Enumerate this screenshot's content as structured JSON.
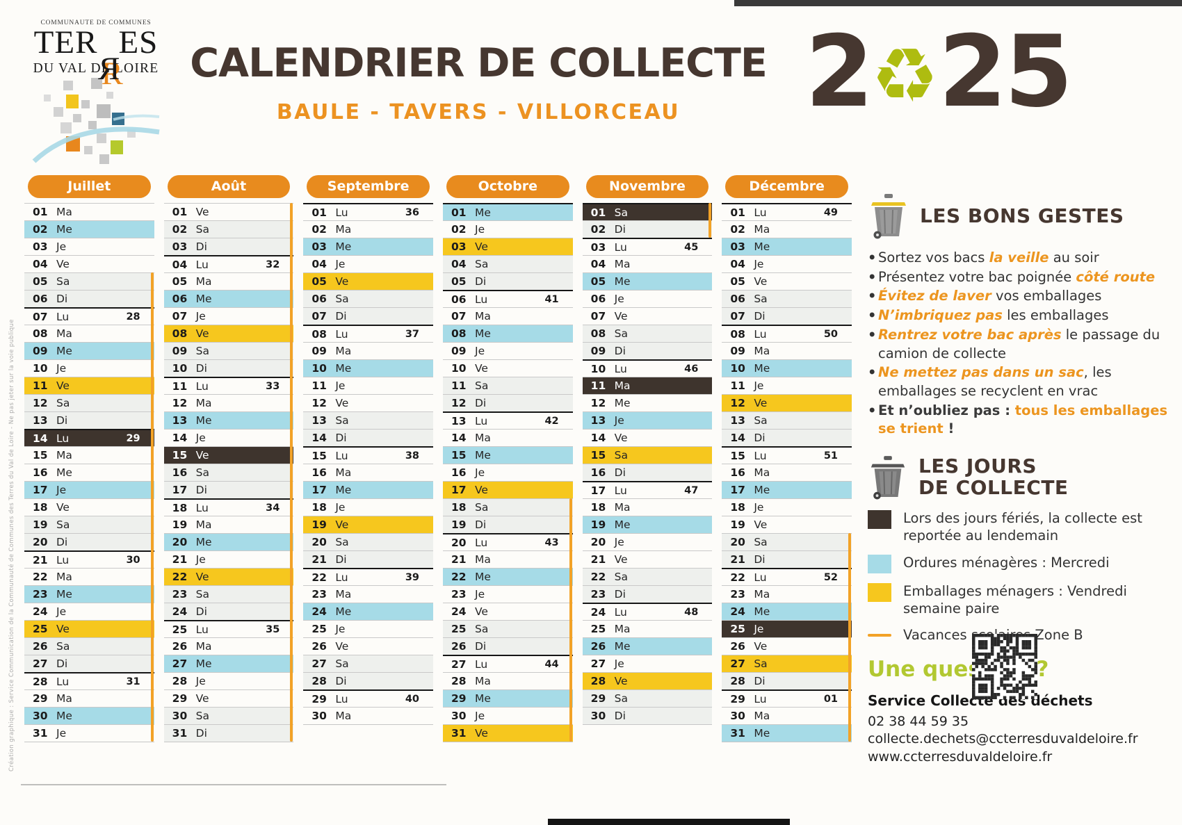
{
  "header": {
    "org_top": "COMMUNAUTE DE COMMUNES",
    "org_name": "TERRES",
    "org_sub": "DU VAL DE LOIRE",
    "title": "CALENDRIER DE COLLECTE",
    "subtitle": "BAULE - TAVERS - VILLORCEAU",
    "year": "2025"
  },
  "icons": {
    "recycle": "♻",
    "bullet": "•"
  },
  "colors": {
    "accent_orange": "#e88b1e",
    "ordures_blue": "#a6dbe7",
    "emballages_yellow": "#f6c71e",
    "ferie_dark": "#3e342d",
    "vacances_line": "#f2a227",
    "title_brown": "#463730",
    "question_green": "#b2c832"
  },
  "day_types": {
    "n": "normal",
    "b": "ordures-menageres",
    "y": "emballages",
    "f": "ferie",
    "w": "weekend"
  },
  "months": [
    {
      "name": "Juillet",
      "vac": [
        5,
        31
      ],
      "days": [
        [
          "01",
          "Ma",
          "n"
        ],
        [
          "02",
          "Me",
          "b"
        ],
        [
          "03",
          "Je",
          "n"
        ],
        [
          "04",
          "Ve",
          "n"
        ],
        [
          "05",
          "Sa",
          "w"
        ],
        [
          "06",
          "Di",
          "w"
        ],
        [
          "07",
          "Lu",
          "n",
          "28"
        ],
        [
          "08",
          "Ma",
          "n"
        ],
        [
          "09",
          "Me",
          "b"
        ],
        [
          "10",
          "Je",
          "n"
        ],
        [
          "11",
          "Ve",
          "y"
        ],
        [
          "12",
          "Sa",
          "w"
        ],
        [
          "13",
          "Di",
          "w"
        ],
        [
          "14",
          "Lu",
          "f",
          "29"
        ],
        [
          "15",
          "Ma",
          "n"
        ],
        [
          "16",
          "Me",
          "n"
        ],
        [
          "17",
          "Je",
          "b"
        ],
        [
          "18",
          "Ve",
          "n"
        ],
        [
          "19",
          "Sa",
          "w"
        ],
        [
          "20",
          "Di",
          "w"
        ],
        [
          "21",
          "Lu",
          "n",
          "30"
        ],
        [
          "22",
          "Ma",
          "n"
        ],
        [
          "23",
          "Me",
          "b"
        ],
        [
          "24",
          "Je",
          "n"
        ],
        [
          "25",
          "Ve",
          "y"
        ],
        [
          "26",
          "Sa",
          "w"
        ],
        [
          "27",
          "Di",
          "w"
        ],
        [
          "28",
          "Lu",
          "n",
          "31"
        ],
        [
          "29",
          "Ma",
          "n"
        ],
        [
          "30",
          "Me",
          "b"
        ],
        [
          "31",
          "Je",
          "n"
        ]
      ]
    },
    {
      "name": "Août",
      "vac": [
        1,
        31
      ],
      "days": [
        [
          "01",
          "Ve",
          "n"
        ],
        [
          "02",
          "Sa",
          "w"
        ],
        [
          "03",
          "Di",
          "w"
        ],
        [
          "04",
          "Lu",
          "n",
          "32"
        ],
        [
          "05",
          "Ma",
          "n"
        ],
        [
          "06",
          "Me",
          "b"
        ],
        [
          "07",
          "Je",
          "n"
        ],
        [
          "08",
          "Ve",
          "y"
        ],
        [
          "09",
          "Sa",
          "w"
        ],
        [
          "10",
          "Di",
          "w"
        ],
        [
          "11",
          "Lu",
          "n",
          "33"
        ],
        [
          "12",
          "Ma",
          "n"
        ],
        [
          "13",
          "Me",
          "b"
        ],
        [
          "14",
          "Je",
          "n"
        ],
        [
          "15",
          "Ve",
          "f"
        ],
        [
          "16",
          "Sa",
          "w"
        ],
        [
          "17",
          "Di",
          "w"
        ],
        [
          "18",
          "Lu",
          "n",
          "34"
        ],
        [
          "19",
          "Ma",
          "n"
        ],
        [
          "20",
          "Me",
          "b"
        ],
        [
          "21",
          "Je",
          "n"
        ],
        [
          "22",
          "Ve",
          "y"
        ],
        [
          "23",
          "Sa",
          "w"
        ],
        [
          "24",
          "Di",
          "w"
        ],
        [
          "25",
          "Lu",
          "n",
          "35"
        ],
        [
          "26",
          "Ma",
          "n"
        ],
        [
          "27",
          "Me",
          "b"
        ],
        [
          "28",
          "Je",
          "n"
        ],
        [
          "29",
          "Ve",
          "n"
        ],
        [
          "30",
          "Sa",
          "w"
        ],
        [
          "31",
          "Di",
          "w"
        ]
      ]
    },
    {
      "name": "Septembre",
      "vac": null,
      "days": [
        [
          "01",
          "Lu",
          "n",
          "36"
        ],
        [
          "02",
          "Ma",
          "n"
        ],
        [
          "03",
          "Me",
          "b"
        ],
        [
          "04",
          "Je",
          "n"
        ],
        [
          "05",
          "Ve",
          "y"
        ],
        [
          "06",
          "Sa",
          "w"
        ],
        [
          "07",
          "Di",
          "w"
        ],
        [
          "08",
          "Lu",
          "n",
          "37"
        ],
        [
          "09",
          "Ma",
          "n"
        ],
        [
          "10",
          "Me",
          "b"
        ],
        [
          "11",
          "Je",
          "n"
        ],
        [
          "12",
          "Ve",
          "n"
        ],
        [
          "13",
          "Sa",
          "w"
        ],
        [
          "14",
          "Di",
          "w"
        ],
        [
          "15",
          "Lu",
          "n",
          "38"
        ],
        [
          "16",
          "Ma",
          "n"
        ],
        [
          "17",
          "Me",
          "b"
        ],
        [
          "18",
          "Je",
          "n"
        ],
        [
          "19",
          "Ve",
          "y"
        ],
        [
          "20",
          "Sa",
          "w"
        ],
        [
          "21",
          "Di",
          "w"
        ],
        [
          "22",
          "Lu",
          "n",
          "39"
        ],
        [
          "23",
          "Ma",
          "n"
        ],
        [
          "24",
          "Me",
          "b"
        ],
        [
          "25",
          "Je",
          "n"
        ],
        [
          "26",
          "Ve",
          "n"
        ],
        [
          "27",
          "Sa",
          "w"
        ],
        [
          "28",
          "Di",
          "w"
        ],
        [
          "29",
          "Lu",
          "n",
          "40"
        ],
        [
          "30",
          "Ma",
          "n"
        ]
      ]
    },
    {
      "name": "Octobre",
      "vac": [
        18,
        31
      ],
      "sep_first": true,
      "days": [
        [
          "01",
          "Me",
          "b"
        ],
        [
          "02",
          "Je",
          "n"
        ],
        [
          "03",
          "Ve",
          "y"
        ],
        [
          "04",
          "Sa",
          "w"
        ],
        [
          "05",
          "Di",
          "w"
        ],
        [
          "06",
          "Lu",
          "n",
          "41"
        ],
        [
          "07",
          "Ma",
          "n"
        ],
        [
          "08",
          "Me",
          "b"
        ],
        [
          "09",
          "Je",
          "n"
        ],
        [
          "10",
          "Ve",
          "n"
        ],
        [
          "11",
          "Sa",
          "w"
        ],
        [
          "12",
          "Di",
          "w"
        ],
        [
          "13",
          "Lu",
          "n",
          "42"
        ],
        [
          "14",
          "Ma",
          "n"
        ],
        [
          "15",
          "Me",
          "b"
        ],
        [
          "16",
          "Je",
          "n"
        ],
        [
          "17",
          "Ve",
          "y"
        ],
        [
          "18",
          "Sa",
          "w"
        ],
        [
          "19",
          "Di",
          "w"
        ],
        [
          "20",
          "Lu",
          "n",
          "43"
        ],
        [
          "21",
          "Ma",
          "n"
        ],
        [
          "22",
          "Me",
          "b"
        ],
        [
          "23",
          "Je",
          "n"
        ],
        [
          "24",
          "Ve",
          "n"
        ],
        [
          "25",
          "Sa",
          "w"
        ],
        [
          "26",
          "Di",
          "w"
        ],
        [
          "27",
          "Lu",
          "n",
          "44"
        ],
        [
          "28",
          "Ma",
          "n"
        ],
        [
          "29",
          "Me",
          "b"
        ],
        [
          "30",
          "Je",
          "n"
        ],
        [
          "31",
          "Ve",
          "y"
        ]
      ]
    },
    {
      "name": "Novembre",
      "vac": [
        1,
        2
      ],
      "sep_first": true,
      "days": [
        [
          "01",
          "Sa",
          "f"
        ],
        [
          "02",
          "Di",
          "w"
        ],
        [
          "03",
          "Lu",
          "n",
          "45"
        ],
        [
          "04",
          "Ma",
          "n"
        ],
        [
          "05",
          "Me",
          "b"
        ],
        [
          "06",
          "Je",
          "n"
        ],
        [
          "07",
          "Ve",
          "n"
        ],
        [
          "08",
          "Sa",
          "w"
        ],
        [
          "09",
          "Di",
          "w"
        ],
        [
          "10",
          "Lu",
          "n",
          "46"
        ],
        [
          "11",
          "Ma",
          "f"
        ],
        [
          "12",
          "Me",
          "n"
        ],
        [
          "13",
          "Je",
          "b"
        ],
        [
          "14",
          "Ve",
          "n"
        ],
        [
          "15",
          "Sa",
          "y"
        ],
        [
          "16",
          "Di",
          "w"
        ],
        [
          "17",
          "Lu",
          "n",
          "47"
        ],
        [
          "18",
          "Ma",
          "n"
        ],
        [
          "19",
          "Me",
          "b"
        ],
        [
          "20",
          "Je",
          "n"
        ],
        [
          "21",
          "Ve",
          "n"
        ],
        [
          "22",
          "Sa",
          "w"
        ],
        [
          "23",
          "Di",
          "w"
        ],
        [
          "24",
          "Lu",
          "n",
          "48"
        ],
        [
          "25",
          "Ma",
          "n"
        ],
        [
          "26",
          "Me",
          "b"
        ],
        [
          "27",
          "Je",
          "n"
        ],
        [
          "28",
          "Ve",
          "y"
        ],
        [
          "29",
          "Sa",
          "w"
        ],
        [
          "30",
          "Di",
          "w"
        ]
      ]
    },
    {
      "name": "Décembre",
      "vac": [
        20,
        31
      ],
      "days": [
        [
          "01",
          "Lu",
          "n",
          "49"
        ],
        [
          "02",
          "Ma",
          "n"
        ],
        [
          "03",
          "Me",
          "b"
        ],
        [
          "04",
          "Je",
          "n"
        ],
        [
          "05",
          "Ve",
          "n"
        ],
        [
          "06",
          "Sa",
          "w"
        ],
        [
          "07",
          "Di",
          "w"
        ],
        [
          "08",
          "Lu",
          "n",
          "50"
        ],
        [
          "09",
          "Ma",
          "n"
        ],
        [
          "10",
          "Me",
          "b"
        ],
        [
          "11",
          "Je",
          "n"
        ],
        [
          "12",
          "Ve",
          "y"
        ],
        [
          "13",
          "Sa",
          "w"
        ],
        [
          "14",
          "Di",
          "w"
        ],
        [
          "15",
          "Lu",
          "n",
          "51"
        ],
        [
          "16",
          "Ma",
          "n"
        ],
        [
          "17",
          "Me",
          "b"
        ],
        [
          "18",
          "Je",
          "n"
        ],
        [
          "19",
          "Ve",
          "n"
        ],
        [
          "20",
          "Sa",
          "w"
        ],
        [
          "21",
          "Di",
          "w"
        ],
        [
          "22",
          "Lu",
          "n",
          "52"
        ],
        [
          "23",
          "Ma",
          "n"
        ],
        [
          "24",
          "Me",
          "b"
        ],
        [
          "25",
          "Je",
          "f"
        ],
        [
          "26",
          "Ve",
          "n"
        ],
        [
          "27",
          "Sa",
          "y"
        ],
        [
          "28",
          "Di",
          "w"
        ],
        [
          "29",
          "Lu",
          "n",
          "01"
        ],
        [
          "30",
          "Ma",
          "n"
        ],
        [
          "31",
          "Me",
          "b"
        ]
      ]
    }
  ],
  "tips": {
    "title": "LES BONS GESTES",
    "items": [
      [
        {
          "t": "Sortez vos bacs ",
          "s": "n"
        },
        {
          "t": "la veille",
          "s": "em"
        },
        {
          "t": " au soir",
          "s": "n"
        }
      ],
      [
        {
          "t": "Présentez votre bac poignée ",
          "s": "n"
        },
        {
          "t": "côté route",
          "s": "em"
        }
      ],
      [
        {
          "t": "Évitez de laver",
          "s": "em"
        },
        {
          "t": " vos emballages",
          "s": "n"
        }
      ],
      [
        {
          "t": "N’imbriquez pas",
          "s": "em"
        },
        {
          "t": " les emballages",
          "s": "n"
        }
      ],
      [
        {
          "t": "Rentrez votre bac après",
          "s": "em"
        },
        {
          "t": " le passage du camion de collecte",
          "s": "n"
        }
      ],
      [
        {
          "t": "Ne mettez pas dans un sac",
          "s": "em"
        },
        {
          "t": ", les emballages se recyclent en vrac",
          "s": "n"
        }
      ],
      [
        {
          "t": "Et n’oubliez pas : ",
          "s": "b"
        },
        {
          "t": "tous les emballages se trient",
          "s": "em2"
        },
        {
          "t": " !",
          "s": "b"
        }
      ]
    ]
  },
  "jours": {
    "title_line1": "LES JOURS",
    "title_line2": "DE COLLECTE",
    "items": [
      {
        "swatch": "dark",
        "text": "Lors des jours fériés, la collecte est reportée au lendemain"
      },
      {
        "swatch": "blue",
        "text": "Ordures ménagères : Mercredi"
      },
      {
        "swatch": "yellow",
        "text": "Emballages ménagers : Vendredi semaine paire"
      },
      {
        "swatch": "line",
        "text": "Vacances scolaires Zone B"
      }
    ]
  },
  "contact": {
    "question": "Une question ?",
    "service": "Service Collecte des déchets",
    "phone": "02 38 44 59 35",
    "email": "collecte.dechets@ccterresduvaldeloire.fr",
    "website": "www.ccterresduvaldeloire.fr"
  },
  "credit": "Création graphique : Service Communication de la Communauté de Communes des Terres du Val de Loire - Ne pas jeter sur la voie publique"
}
